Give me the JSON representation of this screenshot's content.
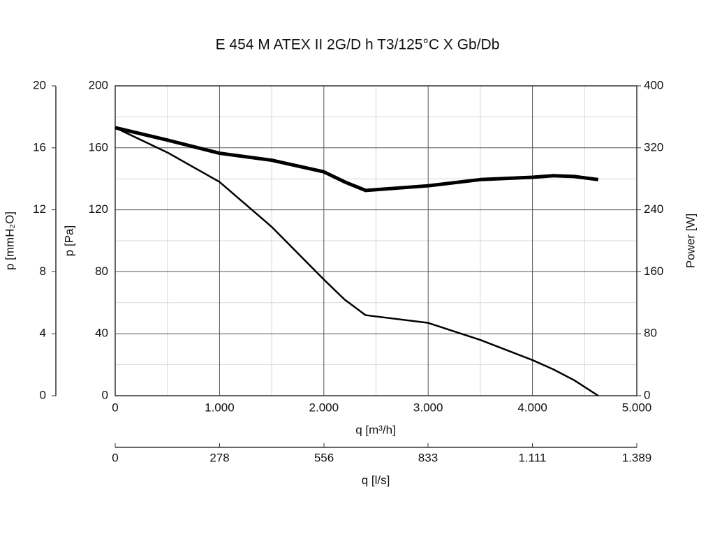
{
  "chart_data": {
    "type": "line",
    "title": "E 454 M ATEX II 2G/D h T3/125°C X Gb/Db",
    "x_label": "q [m³/h]",
    "y_label": "p [Pa]",
    "y2_label": "Power [W]",
    "y3_label": "p [mmH₂O]",
    "x2_label": "q [l/s]",
    "x": [
      0,
      500,
      1000,
      1500,
      2000,
      2200,
      2400,
      3000,
      3500,
      4000,
      4200,
      4400,
      4630
    ],
    "series": [
      {
        "name": "p",
        "color": "#000000",
        "values": [
          173,
          157,
          138,
          109,
          75,
          62,
          52,
          47,
          36,
          23,
          17,
          10,
          0
        ]
      },
      {
        "name": "Power",
        "color": "#000000",
        "axis": "y2",
        "values": [
          346,
          330,
          313,
          304,
          289,
          276,
          265,
          271,
          279,
          282,
          284,
          283,
          279
        ]
      }
    ],
    "xlim": [
      0,
      5000
    ],
    "xticks": [
      0,
      {
        "value": 1000,
        "label": "1.000"
      },
      {
        "value": 2000,
        "label": "2.000"
      },
      {
        "value": 3000,
        "label": "3.000"
      },
      {
        "value": 4000,
        "label": "4.000"
      },
      {
        "value": 5000,
        "label": "5.000"
      }
    ],
    "ylim": [
      0,
      200
    ],
    "yticks": [
      0,
      40,
      80,
      120,
      160,
      200
    ],
    "y2lim": [
      0,
      400
    ],
    "y2ticks": [
      0,
      80,
      160,
      240,
      320,
      400
    ],
    "y3lim": [
      0,
      20
    ],
    "y3ticks": [
      0,
      4,
      8,
      12,
      16,
      20
    ],
    "x2lim": [
      0,
      1389
    ],
    "x2ticks": [
      0,
      278,
      556,
      833,
      {
        "value": 1111,
        "label": "1.111"
      },
      {
        "value": 1389,
        "label": "1.389"
      }
    ],
    "grid": true
  }
}
